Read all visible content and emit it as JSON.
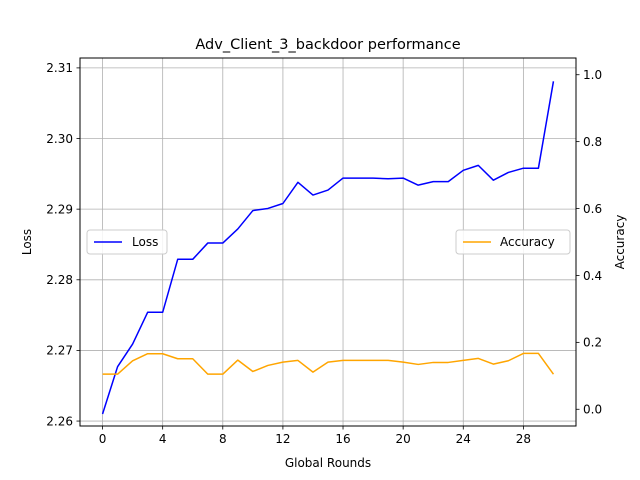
{
  "chart_data": {
    "type": "line",
    "title": "Adv_Client_3_backdoor performance",
    "xlabel": "Global Rounds",
    "ylabel": "Loss",
    "y2label": "Accuracy",
    "xlim": [
      -1.5,
      31.5
    ],
    "ylim": [
      2.2593,
      2.3114
    ],
    "y2lim": [
      -0.05,
      1.05
    ],
    "xticks": [
      0,
      4,
      8,
      12,
      16,
      20,
      24,
      28
    ],
    "yticks": [
      2.26,
      2.27,
      2.28,
      2.29,
      2.3,
      2.31
    ],
    "y2ticks": [
      0.0,
      0.2,
      0.4,
      0.6,
      0.8,
      1.0
    ],
    "grid": true,
    "x": [
      0,
      1,
      2,
      3,
      4,
      5,
      6,
      7,
      8,
      9,
      10,
      11,
      12,
      13,
      14,
      15,
      16,
      17,
      18,
      19,
      20,
      21,
      22,
      23,
      24,
      25,
      26,
      27,
      28,
      29,
      30
    ],
    "series": [
      {
        "name": "Loss",
        "axis": "left",
        "color": "#0000ff",
        "legend_position": "center-left",
        "values": [
          2.261,
          2.2677,
          2.2709,
          2.2754,
          2.2754,
          2.2829,
          2.2829,
          2.2852,
          2.2852,
          2.2872,
          2.2898,
          2.2901,
          2.2908,
          2.2938,
          2.292,
          2.2927,
          2.2944,
          2.2944,
          2.2944,
          2.2943,
          2.2944,
          2.2934,
          2.2939,
          2.2939,
          2.2955,
          2.2962,
          2.2941,
          2.2952,
          2.2958,
          2.2958,
          2.3081
        ]
      },
      {
        "name": "Accuracy",
        "axis": "right",
        "color": "#ffa500",
        "legend_position": "center-right",
        "values": [
          0.105,
          0.105,
          0.145,
          0.166,
          0.166,
          0.151,
          0.151,
          0.105,
          0.105,
          0.147,
          0.113,
          0.131,
          0.141,
          0.146,
          0.111,
          0.141,
          0.146,
          0.146,
          0.146,
          0.146,
          0.141,
          0.134,
          0.14,
          0.14,
          0.146,
          0.152,
          0.135,
          0.145,
          0.167,
          0.167,
          0.105
        ]
      }
    ]
  }
}
